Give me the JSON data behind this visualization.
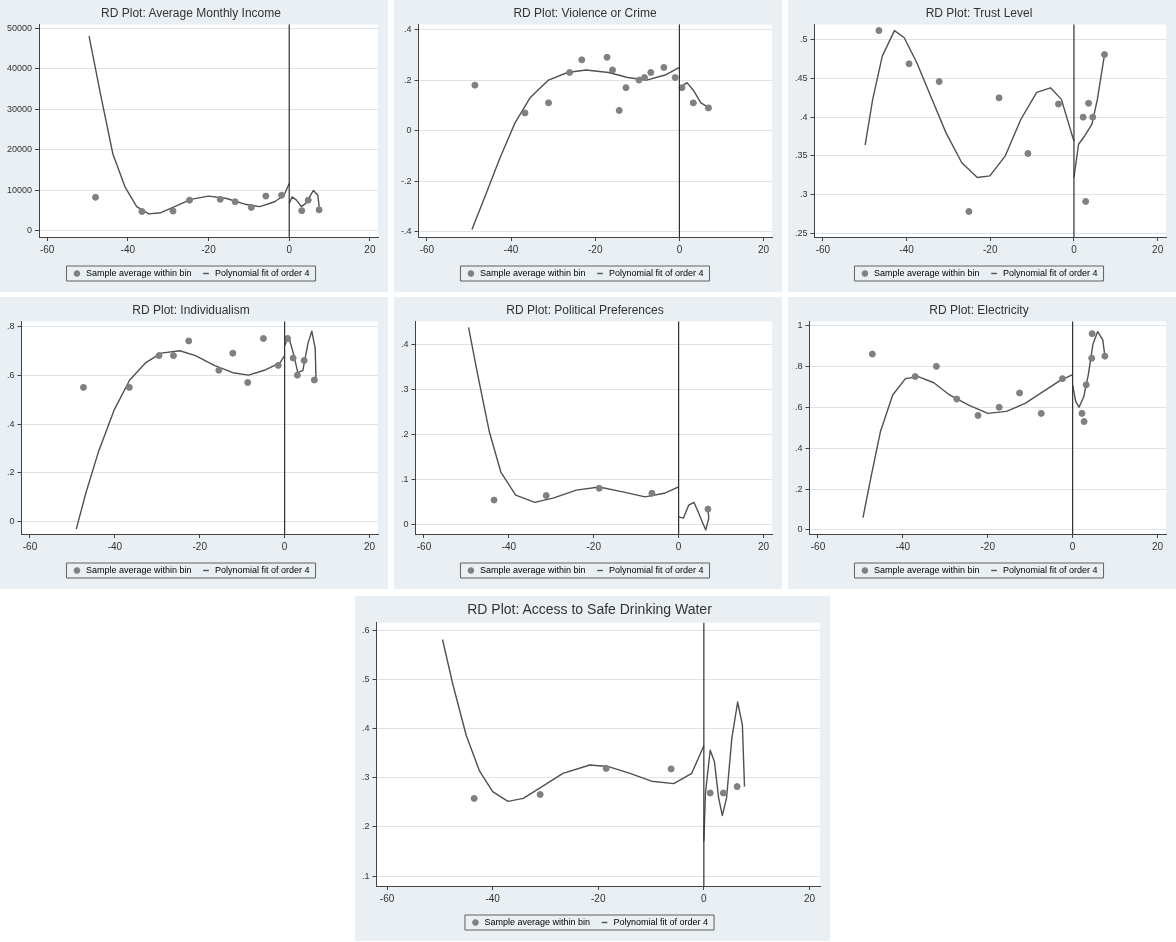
{
  "chart_data": [
    {
      "type": "scatter",
      "title": "RD Plot: Average Monthly Income",
      "xlim": [
        -62,
        22
      ],
      "xticks": [
        -60,
        -40,
        -20,
        0,
        20
      ],
      "ylim": [
        -1500,
        51000
      ],
      "yticks": [
        0,
        10000,
        20000,
        30000,
        40000,
        50000
      ],
      "grid": "y",
      "legend": "bottom",
      "ref_lines": [
        {
          "axis": "x",
          "value": 0,
          "color": "#303030"
        }
      ],
      "series": [
        {
          "name": "Sample average within bin",
          "type": "scatter",
          "marker": "circle",
          "color": "#808080",
          "x": [
            -48,
            -36.5,
            -28.8,
            -24.7,
            -17.1,
            -13.4,
            -9.4,
            -5.8,
            -1.9,
            3.1,
            4.7,
            7.4
          ],
          "values": [
            8300,
            4800,
            4900,
            7600,
            7800,
            7200,
            5800,
            8600,
            8800,
            5000,
            7600,
            5200
          ]
        },
        {
          "name": "Polynomial fit of order 4",
          "type": "line",
          "marker": "none",
          "color": "#505050",
          "x": [
            -49.6,
            -46.6,
            -43.7,
            -40.7,
            -37.8,
            -34.8,
            -31.8,
            -28.1,
            -24.4,
            -20,
            -15.5,
            -11,
            -7.3,
            -3.6,
            -1.3,
            0
          ],
          "values": [
            48100,
            33000,
            19000,
            10900,
            6000,
            4200,
            4500,
            6100,
            7800,
            8600,
            8000,
            6600,
            6000,
            7200,
            8800,
            11700
          ]
        },
        {
          "type": "line",
          "marker": "none",
          "color": "#505050",
          "x": [
            0,
            0.7,
            1.8,
            3,
            4.1,
            6,
            7.1,
            7.5
          ],
          "values": [
            6800,
            8400,
            7600,
            6000,
            6800,
            10000,
            8800,
            5200
          ]
        }
      ]
    },
    {
      "type": "scatter",
      "title": "RD Plot: Violence or Crime",
      "xlim": [
        -62,
        22
      ],
      "xticks": [
        -60,
        -40,
        -20,
        0,
        20
      ],
      "ylim": [
        -0.42,
        0.42
      ],
      "yticks": [
        {
          "value": -0.4,
          "label": "-.4"
        },
        {
          "value": -0.2,
          "label": "-.2"
        },
        0,
        {
          "value": 0.2,
          "label": ".2"
        },
        {
          "value": 0.4,
          "label": ".4"
        }
      ],
      "grid": "y",
      "legend": "bottom",
      "ref_lines": [
        {
          "axis": "x",
          "value": 0,
          "color": "#303030"
        }
      ],
      "series": [
        {
          "name": "Sample average within bin",
          "type": "scatter",
          "marker": "circle",
          "color": "#808080",
          "x": [
            -48.6,
            -36.7,
            -31.1,
            -26.1,
            -23.2,
            -17.2,
            -15.9,
            -14.3,
            -12.7,
            -9.6,
            -8.3,
            -6.8,
            -3.7,
            -1,
            0.6,
            3.3,
            6.9
          ],
          "values": [
            0.18,
            0.07,
            0.11,
            0.23,
            0.28,
            0.29,
            0.24,
            0.08,
            0.17,
            0.2,
            0.21,
            0.23,
            0.25,
            0.21,
            0.17,
            0.11,
            0.09
          ]
        },
        {
          "name": "Polynomial fit of order 4",
          "type": "line",
          "marker": "none",
          "color": "#505050",
          "x": [
            -49.3,
            -46.2,
            -42.7,
            -39.1,
            -35.5,
            -31.1,
            -26.6,
            -22.2,
            -16.8,
            -12.3,
            -7.8,
            -3.4,
            0
          ],
          "values": [
            -0.39,
            -0.26,
            -0.11,
            0.03,
            0.13,
            0.2,
            0.23,
            0.24,
            0.23,
            0.21,
            0.2,
            0.22,
            0.25
          ]
        },
        {
          "type": "line",
          "marker": "none",
          "color": "#505050",
          "x": [
            0.2,
            1.8,
            3.3,
            5.1,
            7.1
          ],
          "values": [
            0.17,
            0.19,
            0.16,
            0.11,
            0.09
          ]
        }
      ]
    },
    {
      "type": "scatter",
      "title": "RD Plot: Trust Level",
      "xlim": [
        -62,
        22
      ],
      "xticks": [
        -60,
        -40,
        -20,
        0,
        20
      ],
      "ylim": [
        0.245,
        0.52
      ],
      "yticks": [
        {
          "value": 0.25,
          "label": ".25"
        },
        {
          "value": 0.3,
          "label": ".3"
        },
        {
          "value": 0.35,
          "label": ".35"
        },
        {
          "value": 0.4,
          "label": ".4"
        },
        {
          "value": 0.45,
          "label": ".45"
        },
        {
          "value": 0.5,
          "label": ".5"
        }
      ],
      "grid": "y",
      "legend": "bottom",
      "ref_lines": [
        {
          "axis": "x",
          "value": 0,
          "color": "#303030"
        }
      ],
      "series": [
        {
          "name": "Sample average within bin",
          "type": "scatter",
          "marker": "circle",
          "color": "#808080",
          "x": [
            -46.6,
            -39.4,
            -32.2,
            -25.1,
            -17.9,
            -11,
            -3.7,
            2.2,
            2.8,
            3.5,
            4.5,
            7.3
          ],
          "values": [
            0.512,
            0.469,
            0.446,
            0.278,
            0.425,
            0.353,
            0.417,
            0.4,
            0.291,
            0.418,
            0.4,
            0.481
          ]
        },
        {
          "name": "Polynomial fit of order 4",
          "type": "line",
          "marker": "none",
          "color": "#505050",
          "x": [
            -49.9,
            -48.1,
            -45.8,
            -42.9,
            -40.6,
            -37.6,
            -34.3,
            -30.6,
            -26.8,
            -23.1,
            -20.1,
            -16.4,
            -12.7,
            -8.9,
            -5.6,
            -3,
            -0.4,
            0
          ],
          "values": [
            0.364,
            0.423,
            0.479,
            0.512,
            0.503,
            0.471,
            0.428,
            0.38,
            0.341,
            0.322,
            0.324,
            0.35,
            0.397,
            0.432,
            0.438,
            0.423,
            0.376,
            0.369
          ]
        },
        {
          "type": "line",
          "marker": "none",
          "color": "#505050",
          "x": [
            0,
            1.1,
            2.6,
            4.3,
            5.6,
            7.3
          ],
          "values": [
            0.322,
            0.365,
            0.376,
            0.391,
            0.423,
            0.481
          ]
        }
      ]
    },
    {
      "type": "scatter",
      "title": "RD Plot: Individualism",
      "xlim": [
        -62,
        22
      ],
      "xticks": [
        -60,
        -40,
        -20,
        0,
        20
      ],
      "ylim": [
        -0.05,
        0.82
      ],
      "yticks": [
        0,
        {
          "value": 0.2,
          "label": ".2"
        },
        {
          "value": 0.4,
          "label": ".4"
        },
        {
          "value": 0.6,
          "label": ".6"
        },
        {
          "value": 0.8,
          "label": ".8"
        }
      ],
      "grid": "y",
      "legend": "bottom",
      "ref_lines": [
        {
          "axis": "x",
          "value": 0,
          "color": "#303030"
        }
      ],
      "series": [
        {
          "name": "Sample average within bin",
          "type": "scatter",
          "marker": "circle",
          "color": "#808080",
          "x": [
            -47.4,
            -36.6,
            -29.6,
            -26.2,
            -22.6,
            -15.5,
            -12.2,
            -8.7,
            -5,
            -1.5,
            0.7,
            2,
            3,
            4.6,
            7
          ],
          "values": [
            0.55,
            0.55,
            0.68,
            0.68,
            0.74,
            0.62,
            0.69,
            0.57,
            0.75,
            0.64,
            0.75,
            0.67,
            0.6,
            0.66,
            0.58
          ]
        },
        {
          "name": "Polynomial fit of order 4",
          "type": "line",
          "marker": "none",
          "color": "#505050",
          "x": [
            -49.1,
            -46.8,
            -43.8,
            -40.1,
            -36.5,
            -32.8,
            -29.1,
            -24.7,
            -21,
            -16.6,
            -12.2,
            -8.5,
            -4.8,
            -1.1,
            0
          ],
          "values": [
            -0.03,
            0.12,
            0.29,
            0.46,
            0.58,
            0.65,
            0.69,
            0.7,
            0.68,
            0.64,
            0.61,
            0.6,
            0.62,
            0.65,
            0.68
          ]
        },
        {
          "type": "line",
          "marker": "none",
          "color": "#505050",
          "x": [
            0,
            0.9,
            2.2,
            3.1,
            4.3,
            5.5,
            6.4,
            7.2,
            7.4
          ],
          "values": [
            0.72,
            0.76,
            0.68,
            0.61,
            0.62,
            0.73,
            0.78,
            0.71,
            0.58
          ]
        }
      ]
    },
    {
      "type": "scatter",
      "title": "RD Plot: Political Preferences",
      "xlim": [
        -62,
        22
      ],
      "xticks": [
        -60,
        -40,
        -20,
        0,
        20
      ],
      "ylim": [
        -0.02,
        0.45
      ],
      "yticks": [
        0,
        {
          "value": 0.1,
          "label": ".1"
        },
        {
          "value": 0.2,
          "label": ".2"
        },
        {
          "value": 0.3,
          "label": ".3"
        },
        {
          "value": 0.4,
          "label": ".4"
        }
      ],
      "grid": "y",
      "legend": "bottom",
      "ref_lines": [
        {
          "axis": "x",
          "value": 0,
          "color": "#303030"
        }
      ],
      "series": [
        {
          "name": "Sample average within bin",
          "type": "scatter",
          "marker": "circle",
          "color": "#808080",
          "x": [
            -43.5,
            -31.2,
            -18.7,
            -6.3,
            6.9
          ],
          "values": [
            0.055,
            0.065,
            0.081,
            0.07,
            0.035
          ]
        },
        {
          "name": "Polynomial fit of order 4",
          "type": "line",
          "marker": "none",
          "color": "#505050",
          "x": [
            -49.5,
            -47.3,
            -44.6,
            -41.9,
            -38.4,
            -33.9,
            -29.4,
            -24.1,
            -18.7,
            -13.2,
            -7.9,
            -3.4,
            0
          ],
          "values": [
            0.437,
            0.33,
            0.206,
            0.117,
            0.066,
            0.05,
            0.06,
            0.077,
            0.084,
            0.073,
            0.062,
            0.07,
            0.084
          ]
        },
        {
          "type": "line",
          "marker": "none",
          "color": "#505050",
          "x": [
            0,
            1.1,
            2.4,
            3.6,
            4.6,
            5.7,
            6.4,
            7.1,
            6.9
          ],
          "values": [
            0.018,
            0.015,
            0.044,
            0.05,
            0.029,
            0.004,
            -0.011,
            0.015,
            0.035
          ]
        }
      ]
    },
    {
      "type": "scatter",
      "title": "RD Plot: Electricity",
      "xlim": [
        -62,
        22
      ],
      "xticks": [
        -60,
        -40,
        -20,
        0,
        20
      ],
      "ylim": [
        -0.02,
        1.02
      ],
      "yticks": [
        0,
        {
          "value": 0.2,
          "label": ".2"
        },
        {
          "value": 0.4,
          "label": ".4"
        },
        {
          "value": 0.6,
          "label": ".6"
        },
        {
          "value": 0.8,
          "label": ".8"
        },
        1
      ],
      "grid": "y",
      "legend": "bottom",
      "ref_lines": [
        {
          "axis": "x",
          "value": 0,
          "color": "#303030"
        }
      ],
      "series": [
        {
          "name": "Sample average within bin",
          "type": "scatter",
          "marker": "circle",
          "color": "#808080",
          "x": [
            -47.2,
            -37.1,
            -32.1,
            -27.3,
            -22.3,
            -17.3,
            -12.5,
            -7.4,
            -2.4,
            2.2,
            2.7,
            3.2,
            4.5,
            4.6,
            7.6
          ],
          "values": [
            0.86,
            0.75,
            0.8,
            0.64,
            0.56,
            0.6,
            0.67,
            0.57,
            0.74,
            0.57,
            0.53,
            0.71,
            0.84,
            0.96,
            0.85
          ]
        },
        {
          "name": "Polynomial fit of order 4",
          "type": "line",
          "marker": "none",
          "color": "#505050",
          "x": [
            -49.4,
            -47.5,
            -45.3,
            -42.4,
            -39.4,
            -36.4,
            -32.7,
            -29,
            -24.5,
            -20,
            -15.6,
            -11.1,
            -6.7,
            -3,
            0
          ],
          "values": [
            0.06,
            0.26,
            0.48,
            0.66,
            0.74,
            0.75,
            0.72,
            0.66,
            0.61,
            0.57,
            0.58,
            0.62,
            0.68,
            0.73,
            0.76
          ]
        },
        {
          "type": "line",
          "marker": "none",
          "color": "#505050",
          "x": [
            0,
            0.7,
            1.5,
            2.6,
            3.7,
            4.8,
            5.9,
            7.1,
            7.6
          ],
          "values": [
            0.71,
            0.63,
            0.6,
            0.65,
            0.76,
            0.91,
            0.97,
            0.93,
            0.85
          ]
        }
      ]
    },
    {
      "type": "scatter",
      "title": "RD Plot: Access to Safe Drinking Water",
      "xlim": [
        -62,
        22
      ],
      "xticks": [
        -60,
        -40,
        -20,
        0,
        20
      ],
      "ylim": [
        0.08,
        0.615
      ],
      "yticks": [
        {
          "value": 0.1,
          "label": ".1"
        },
        {
          "value": 0.2,
          "label": ".2"
        },
        {
          "value": 0.3,
          "label": ".3"
        },
        {
          "value": 0.4,
          "label": ".4"
        },
        {
          "value": 0.5,
          "label": ".5"
        },
        {
          "value": 0.6,
          "label": ".6"
        }
      ],
      "grid": "y",
      "legend": "bottom",
      "ref_lines": [
        {
          "axis": "x",
          "value": 0,
          "color": "#303030"
        }
      ],
      "series": [
        {
          "name": "Sample average within bin",
          "type": "scatter",
          "marker": "circle",
          "color": "#808080",
          "x": [
            -43.5,
            -31,
            -18.5,
            -6.2,
            1.2,
            3.7,
            6.3
          ],
          "values": [
            0.258,
            0.266,
            0.319,
            0.318,
            0.269,
            0.269,
            0.282
          ]
        },
        {
          "name": "Polynomial fit of order 4",
          "type": "line",
          "marker": "none",
          "color": "#505050",
          "x": [
            -49.5,
            -47.5,
            -45,
            -42.5,
            -40,
            -37.1,
            -34.2,
            -30.8,
            -26.7,
            -21.6,
            -18.2,
            -14,
            -9.9,
            -5.7,
            -2.3,
            0
          ],
          "values": [
            0.581,
            0.488,
            0.386,
            0.314,
            0.272,
            0.252,
            0.258,
            0.281,
            0.309,
            0.326,
            0.323,
            0.309,
            0.293,
            0.288,
            0.309,
            0.365
          ]
        },
        {
          "type": "line",
          "marker": "none",
          "color": "#505050",
          "x": [
            0,
            0.3,
            1.2,
            2,
            2.8,
            3.5,
            4.3,
            5.3,
            6.4,
            7.3,
            7.7
          ],
          "values": [
            0.171,
            0.268,
            0.356,
            0.333,
            0.259,
            0.223,
            0.259,
            0.38,
            0.454,
            0.407,
            0.282
          ]
        }
      ]
    }
  ]
}
